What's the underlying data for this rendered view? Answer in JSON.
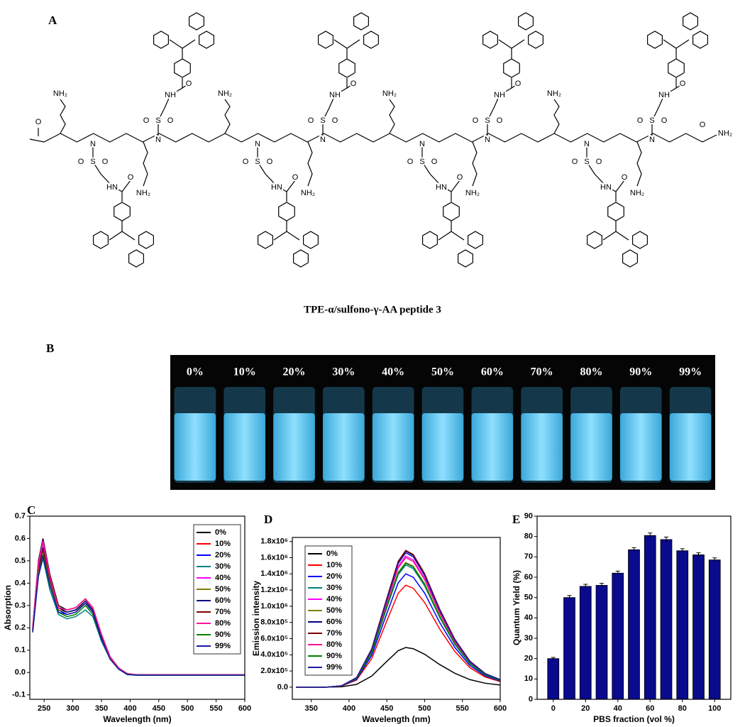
{
  "panel_a": {
    "label": "A",
    "caption": "TPE-α/sulfono-γ-AA peptide 3",
    "n_term": "O",
    "c_term": [
      "O",
      "NH₂"
    ],
    "units": [
      [
        "NH₂",
        "N",
        "S",
        "O",
        "O",
        "HN",
        "O",
        "NH₂",
        "N",
        "S",
        "O",
        "O",
        "NH",
        "O"
      ],
      [
        "NH₂",
        "N",
        "S",
        "O",
        "O",
        "HN",
        "O",
        "NH₂",
        "N",
        "S",
        "O",
        "O",
        "NH",
        "O"
      ],
      [
        "NH₂",
        "N",
        "S",
        "O",
        "O",
        "HN",
        "O",
        "NH₂",
        "N",
        "S",
        "O",
        "O",
        "NH",
        "O"
      ],
      [
        "NH₂",
        "N",
        "S",
        "O",
        "O",
        "HN",
        "O",
        "NH₂",
        "N",
        "S",
        "O",
        "O",
        "NH",
        "O"
      ]
    ]
  },
  "panel_b": {
    "label": "B",
    "labels": [
      "0%",
      "10%",
      "20%",
      "30%",
      "40%",
      "50%",
      "60%",
      "70%",
      "80%",
      "90%",
      "99%"
    ]
  },
  "chart_data": [
    {
      "type": "line",
      "panel_label": "C",
      "x_label": "Wavelength (nm)",
      "y_label": "Absorption",
      "x": [
        230,
        240,
        248,
        260,
        275,
        290,
        305,
        322,
        335,
        350,
        365,
        380,
        395,
        410,
        450,
        500,
        550,
        600
      ],
      "xlim": [
        225,
        600
      ],
      "xticks": [
        250,
        300,
        350,
        400,
        450,
        500,
        550,
        600
      ],
      "ylim": [
        -0.12,
        0.7
      ],
      "yticks": [
        {
          "value": -0.1,
          "label": "-0.1"
        },
        {
          "value": 0,
          "label": "0.0"
        },
        0.1,
        0.2,
        0.3,
        0.4,
        0.5,
        0.6,
        0.7
      ],
      "legend": "upper right",
      "series": [
        {
          "name": "0%",
          "color": "#000000",
          "values": [
            0.2,
            0.5,
            0.6,
            0.44,
            0.3,
            0.28,
            0.29,
            0.33,
            0.29,
            0.17,
            0.07,
            0.02,
            -0.005,
            -0.01,
            -0.01,
            -0.01,
            -0.01,
            -0.01
          ]
        },
        {
          "name": "10%",
          "color": "#ff0000",
          "values": [
            0.19,
            0.49,
            0.58,
            0.43,
            0.29,
            0.27,
            0.28,
            0.32,
            0.28,
            0.16,
            0.07,
            0.02,
            -0.005,
            -0.01,
            -0.01,
            -0.01,
            -0.01,
            -0.01
          ]
        },
        {
          "name": "20%",
          "color": "#0000ff",
          "values": [
            0.19,
            0.47,
            0.56,
            0.41,
            0.28,
            0.26,
            0.27,
            0.31,
            0.27,
            0.16,
            0.07,
            0.02,
            -0.008,
            -0.012,
            -0.012,
            -0.012,
            -0.012,
            -0.012
          ]
        },
        {
          "name": "30%",
          "color": "#008080",
          "values": [
            0.18,
            0.43,
            0.51,
            0.37,
            0.26,
            0.24,
            0.25,
            0.28,
            0.25,
            0.14,
            0.06,
            0.015,
            -0.01,
            -0.012,
            -0.012,
            -0.012,
            -0.012,
            -0.012
          ]
        },
        {
          "name": "40%",
          "color": "#ff00ff",
          "values": [
            0.2,
            0.49,
            0.59,
            0.43,
            0.29,
            0.28,
            0.29,
            0.33,
            0.29,
            0.17,
            0.07,
            0.02,
            -0.005,
            -0.01,
            -0.01,
            -0.01,
            -0.01,
            -0.01
          ]
        },
        {
          "name": "50%",
          "color": "#808000",
          "values": [
            0.19,
            0.46,
            0.55,
            0.41,
            0.28,
            0.27,
            0.28,
            0.31,
            0.28,
            0.16,
            0.07,
            0.02,
            -0.006,
            -0.01,
            -0.01,
            -0.01,
            -0.01,
            -0.01
          ]
        },
        {
          "name": "60%",
          "color": "#000080",
          "values": [
            0.19,
            0.47,
            0.56,
            0.42,
            0.29,
            0.27,
            0.28,
            0.32,
            0.28,
            0.16,
            0.07,
            0.02,
            -0.006,
            -0.01,
            -0.01,
            -0.01,
            -0.01,
            -0.01
          ]
        },
        {
          "name": "70%",
          "color": "#800000",
          "values": [
            0.19,
            0.46,
            0.55,
            0.42,
            0.29,
            0.28,
            0.29,
            0.33,
            0.29,
            0.17,
            0.07,
            0.02,
            -0.005,
            -0.01,
            -0.01,
            -0.01,
            -0.01,
            -0.01
          ]
        },
        {
          "name": "80%",
          "color": "#ff1493",
          "values": [
            0.2,
            0.48,
            0.58,
            0.43,
            0.29,
            0.28,
            0.29,
            0.33,
            0.29,
            0.17,
            0.07,
            0.02,
            -0.005,
            -0.01,
            -0.01,
            -0.01,
            -0.01,
            -0.01
          ]
        },
        {
          "name": "90%",
          "color": "#008000",
          "values": [
            0.18,
            0.44,
            0.53,
            0.39,
            0.27,
            0.25,
            0.26,
            0.3,
            0.26,
            0.15,
            0.06,
            0.015,
            -0.008,
            -0.012,
            -0.012,
            -0.012,
            -0.012,
            -0.012
          ]
        },
        {
          "name": "99%",
          "color": "#1a1aa6",
          "values": [
            0.18,
            0.43,
            0.52,
            0.39,
            0.27,
            0.26,
            0.27,
            0.31,
            0.27,
            0.15,
            0.06,
            0.015,
            -0.008,
            -0.012,
            -0.012,
            -0.012,
            -0.012,
            -0.012
          ]
        }
      ]
    },
    {
      "type": "line",
      "panel_label": "D",
      "x_label": "Wavelength (nm)",
      "y_label": "Emission intensity",
      "x": [
        330,
        370,
        390,
        410,
        430,
        450,
        465,
        475,
        485,
        500,
        520,
        540,
        560,
        580,
        600
      ],
      "xlim": [
        325,
        600
      ],
      "xticks": [
        350,
        400,
        450,
        500,
        550,
        600
      ],
      "ylim": [
        -150000,
        1850000
      ],
      "yticks": [
        {
          "value": 0,
          "label": "0.0"
        },
        {
          "value": 200000,
          "label": "2.0x10⁵"
        },
        {
          "value": 400000,
          "label": "4.0x10⁵"
        },
        {
          "value": 600000,
          "label": "6.0x10⁵"
        },
        {
          "value": 800000,
          "label": "8.0x10⁵"
        },
        {
          "value": 1000000,
          "label": "1.0x10⁶"
        },
        {
          "value": 1200000,
          "label": "1.2x10⁶"
        },
        {
          "value": 1400000,
          "label": "1.4x10⁶"
        },
        {
          "value": 1600000,
          "label": "1.6x10⁶"
        },
        {
          "value": 1800000,
          "label": "1.8x10⁶"
        }
      ],
      "legend": "upper left",
      "series": [
        {
          "name": "0%",
          "color": "#000000",
          "values": [
            0,
            0,
            4900,
            34300,
            137200,
            318500,
            450800,
            490000,
            475300,
            406700,
            279300,
            171500,
            93100,
            49000,
            26950
          ]
        },
        {
          "name": "10%",
          "color": "#ff0000",
          "values": [
            0,
            0,
            12600,
            88200,
            352800,
            819000,
            1159200,
            1260000,
            1222200,
            1045800,
            718200,
            441000,
            239400,
            126000,
            69300
          ]
        },
        {
          "name": "20%",
          "color": "#0000ff",
          "values": [
            0,
            0,
            14000,
            98000,
            392000,
            910000,
            1288000,
            1400000,
            1358000,
            1162000,
            798000,
            490000,
            266000,
            140000,
            77000
          ]
        },
        {
          "name": "30%",
          "color": "#008080",
          "values": [
            0,
            0,
            15100,
            105700,
            422800,
            981500,
            1389200,
            1510000,
            1464700,
            1253300,
            860700,
            528500,
            286900,
            151000,
            83050
          ]
        },
        {
          "name": "40%",
          "color": "#ff00ff",
          "values": [
            0,
            0,
            16200,
            113400,
            453600,
            1053000,
            1490400,
            1620000,
            1571400,
            1344600,
            923400,
            567000,
            307800,
            162000,
            89100
          ]
        },
        {
          "name": "50%",
          "color": "#808000",
          "values": [
            0,
            0,
            15400,
            107800,
            431200,
            1001000,
            1416800,
            1540000,
            1493800,
            1278200,
            877800,
            539000,
            292600,
            154000,
            84700
          ]
        },
        {
          "name": "60%",
          "color": "#000080",
          "values": [
            0,
            0,
            16800,
            117600,
            470400,
            1092000,
            1545600,
            1680000,
            1629600,
            1394400,
            957600,
            588000,
            319200,
            168000,
            92400
          ]
        },
        {
          "name": "70%",
          "color": "#800000",
          "values": [
            0,
            0,
            16900,
            118300,
            473200,
            1098500,
            1554800,
            1690000,
            1639300,
            1402700,
            963300,
            591500,
            321100,
            169000,
            92950
          ]
        },
        {
          "name": "80%",
          "color": "#ff1493",
          "values": [
            0,
            0,
            16000,
            112000,
            448000,
            1040000,
            1472000,
            1600000,
            1552000,
            1328000,
            912000,
            560000,
            304000,
            160000,
            88000
          ]
        },
        {
          "name": "90%",
          "color": "#008000",
          "values": [
            0,
            0,
            15300,
            107100,
            428400,
            994500,
            1407600,
            1530000,
            1484100,
            1269900,
            872100,
            535500,
            290700,
            153000,
            84150
          ]
        },
        {
          "name": "99%",
          "color": "#1a1aa6",
          "values": [
            0,
            0,
            16600,
            116200,
            464800,
            1079000,
            1527200,
            1660000,
            1610200,
            1377800,
            946200,
            581000,
            315400,
            166000,
            91300
          ]
        }
      ]
    },
    {
      "type": "bar",
      "panel_label": "E",
      "x_label": "PBS fraction (vol %)",
      "y_label": "Quantum Yield  (%)",
      "x": [
        0,
        10,
        20,
        30,
        40,
        50,
        60,
        70,
        80,
        90,
        100
      ],
      "values": [
        20,
        50,
        55.5,
        56,
        62,
        73.5,
        80.5,
        78.5,
        73,
        71,
        68.5
      ],
      "errors": [
        0.6,
        1,
        1,
        1,
        1,
        1,
        1.2,
        1.2,
        1,
        1,
        1
      ],
      "color": "#0a0a8c",
      "xlim": [
        -10,
        110
      ],
      "xticks": [
        0,
        20,
        40,
        60,
        80,
        100
      ],
      "ylim": [
        0,
        90
      ],
      "yticks": [
        0,
        10,
        20,
        30,
        40,
        50,
        60,
        70,
        80,
        90
      ]
    }
  ]
}
